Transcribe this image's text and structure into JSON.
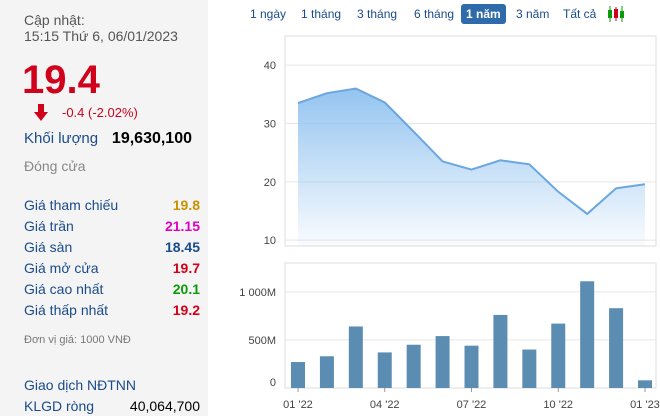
{
  "left_panel": {
    "updated_label": "Cập nhật:",
    "updated_time": "15:15 Thứ 6, 06/01/2023",
    "price": "19.4",
    "change": "-0.4 (-2.02%)",
    "volume_label": "Khối lượng",
    "volume_value": "19,630,100",
    "status": "Đóng cửa",
    "stats": [
      {
        "label": "Giá tham chiếu",
        "value": "19.8",
        "color": "#c89200"
      },
      {
        "label": "Giá trần",
        "value": "21.15",
        "color": "#e000c8"
      },
      {
        "label": "Giá sàn",
        "value": "18.45",
        "color": "#1a4b8a"
      },
      {
        "label": "Giá mở cửa",
        "value": "19.7",
        "color": "#d0021b"
      },
      {
        "label": "Giá cao nhất",
        "value": "20.1",
        "color": "#0a9a0a"
      },
      {
        "label": "Giá thấp nhất",
        "value": "19.2",
        "color": "#d0021b"
      }
    ],
    "unit_note": "Đơn vị giá: 1000 VNĐ",
    "foreign_title": "Giao dịch NĐTNN",
    "net_label": "KLGD ròng",
    "net_value": "40,064,700"
  },
  "range_tabs": [
    "1 ngày",
    "1 tháng",
    "3 tháng",
    "6 tháng",
    "1 năm",
    "3 năm",
    "Tất cả"
  ],
  "active_tab": "1 năm",
  "candle_icon": "candlestick-icon",
  "colors": {
    "price_up": "#0a9a0a",
    "price_down": "#d0021b",
    "area_fill": "#8ec1ef",
    "bar": "#5b8db2"
  },
  "chart_data": {
    "type": "area",
    "x_tick_labels": [
      "01 '22",
      "04 '22",
      "07 '22",
      "10 '22",
      "01 '23"
    ],
    "price": {
      "y_ticks": [
        10,
        20,
        30,
        40
      ],
      "ylim": [
        9,
        45
      ],
      "values": [
        33.5,
        35.2,
        36,
        33.6,
        28.6,
        23.5,
        22.1,
        23.7,
        23,
        18.3,
        14.5,
        18.9,
        19.6
      ]
    },
    "volume": {
      "type": "bar",
      "y_ticks": [
        "0",
        "500M",
        "1 000M"
      ],
      "ylim": [
        0,
        1300
      ],
      "values": [
        270,
        330,
        640,
        370,
        450,
        540,
        440,
        760,
        400,
        670,
        1110,
        830,
        80
      ]
    }
  }
}
